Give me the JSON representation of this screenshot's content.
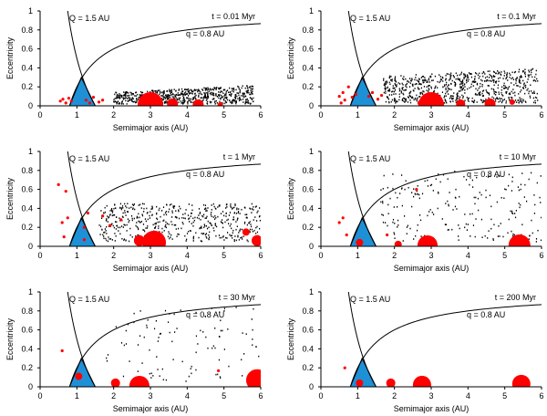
{
  "chart_data": [
    {
      "type": "scatter",
      "time_label": "t = 0.01 Myr",
      "Q_label": "Q = 1.5 AU",
      "q_label": "q = 0.8 AU",
      "xlabel": "Semimajor axis (AU)",
      "ylabel": "Eccentricity",
      "xlim": [
        0,
        6
      ],
      "ylim": [
        0,
        1
      ],
      "xticks": [
        0,
        1,
        2,
        3,
        4,
        5,
        6
      ],
      "yticks": [
        0,
        0.2,
        0.4,
        0.6,
        0.8,
        1
      ],
      "black_dots": {
        "a_min": 2.0,
        "a_max": 5.8,
        "e_base": 0.02,
        "e_spread": 0.12,
        "e_slope": 0.02,
        "count": 700,
        "seed": 11
      },
      "red_small": [
        [
          0.55,
          0.05
        ],
        [
          0.62,
          0.07
        ],
        [
          0.7,
          0.03
        ],
        [
          0.78,
          0.08
        ],
        [
          0.85,
          0.05
        ],
        [
          1.25,
          0.06
        ],
        [
          1.35,
          0.03
        ],
        [
          1.45,
          0.09
        ],
        [
          1.6,
          0.04
        ],
        [
          1.7,
          0.06
        ]
      ],
      "red_large": [
        [
          3.0,
          0.01,
          14
        ],
        [
          3.6,
          0.02,
          6
        ],
        [
          4.3,
          0.01,
          6
        ],
        [
          4.9,
          0.01,
          3
        ]
      ]
    },
    {
      "type": "scatter",
      "time_label": "t = 0.1 Myr",
      "Q_label": "Q = 1.5 AU",
      "q_label": "q = 0.8 AU",
      "xlabel": "Semimajor axis (AU)",
      "ylabel": "Eccentricity",
      "xlim": [
        0,
        6
      ],
      "ylim": [
        0,
        1
      ],
      "xticks": [
        0,
        1,
        2,
        3,
        4,
        5,
        6
      ],
      "yticks": [
        0,
        0.2,
        0.4,
        0.6,
        0.8,
        1
      ],
      "black_dots": {
        "a_min": 1.7,
        "a_max": 5.9,
        "e_base": 0.03,
        "e_spread": 0.28,
        "e_slope": 0.02,
        "count": 750,
        "seed": 23
      },
      "red_small": [
        [
          0.5,
          0.1
        ],
        [
          0.6,
          0.14
        ],
        [
          0.65,
          0.06
        ],
        [
          0.75,
          0.2
        ],
        [
          0.85,
          0.09
        ],
        [
          0.95,
          0.12
        ],
        [
          1.3,
          0.1
        ],
        [
          1.4,
          0.14
        ],
        [
          1.55,
          0.07
        ],
        [
          1.65,
          0.11
        ],
        [
          0.55,
          0.03
        ]
      ],
      "red_large": [
        [
          3.0,
          0.01,
          14
        ],
        [
          3.8,
          0.02,
          5
        ],
        [
          4.6,
          0.02,
          6
        ],
        [
          5.2,
          0.04,
          3
        ],
        [
          2.7,
          0.03,
          3
        ]
      ]
    },
    {
      "type": "scatter",
      "time_label": "t = 1 Myr",
      "Q_label": "Q = 1.5 AU",
      "q_label": "q = 0.8 AU",
      "xlabel": "Semimajor axis (AU)",
      "ylabel": "Eccentricity",
      "xlim": [
        0,
        6
      ],
      "ylim": [
        0,
        1
      ],
      "xticks": [
        0,
        1,
        2,
        3,
        4,
        5,
        6
      ],
      "yticks": [
        0,
        0.2,
        0.4,
        0.6,
        0.8,
        1
      ],
      "black_dots": {
        "a_min": 1.6,
        "a_max": 6.0,
        "e_base": 0.05,
        "e_spread": 0.4,
        "e_slope": 0.0,
        "count": 520,
        "seed": 37
      },
      "red_small": [
        [
          0.5,
          0.65
        ],
        [
          0.7,
          0.58
        ],
        [
          0.6,
          0.25
        ],
        [
          0.75,
          0.3
        ],
        [
          0.65,
          0.1
        ],
        [
          1.2,
          0.2
        ],
        [
          1.3,
          0.35
        ],
        [
          1.7,
          0.32
        ],
        [
          1.9,
          0.22
        ],
        [
          2.2,
          0.28
        ],
        [
          1.2,
          0.07
        ]
      ],
      "red_large": [
        [
          2.7,
          0.06,
          6
        ],
        [
          3.1,
          0.04,
          13
        ],
        [
          5.6,
          0.15,
          4
        ],
        [
          5.9,
          0.06,
          6
        ]
      ]
    },
    {
      "type": "scatter",
      "time_label": "t = 10 Myr",
      "Q_label": "Q = 1.5 AU",
      "q_label": "q = 0.8 AU",
      "xlabel": "Semimajor axis (AU)",
      "ylabel": "Eccentricity",
      "xlim": [
        0,
        6
      ],
      "ylim": [
        0,
        1
      ],
      "xticks": [
        0,
        1,
        2,
        3,
        4,
        5,
        6
      ],
      "yticks": [
        0,
        0.2,
        0.4,
        0.6,
        0.8,
        1
      ],
      "black_dots": {
        "a_min": 1.6,
        "a_max": 6.0,
        "e_base": 0.04,
        "e_spread": 0.75,
        "e_slope": 0.0,
        "count": 210,
        "seed": 53
      },
      "red_small": [
        [
          0.5,
          0.25
        ],
        [
          0.6,
          0.3
        ],
        [
          2.6,
          0.6
        ],
        [
          0.7,
          0.12
        ],
        [
          1.8,
          0.12
        ]
      ],
      "red_large": [
        [
          1.05,
          0.04,
          4
        ],
        [
          2.1,
          0.02,
          4
        ],
        [
          2.9,
          0.01,
          11
        ],
        [
          5.4,
          0.01,
          12
        ]
      ]
    },
    {
      "type": "scatter",
      "time_label": "t = 30 Myr",
      "Q_label": "Q = 1.5 AU",
      "q_label": "q = 0.8 AU",
      "xlabel": "Semimajor axis (AU)",
      "ylabel": "Eccentricity",
      "xlim": [
        0,
        6
      ],
      "ylim": [
        0,
        1
      ],
      "xticks": [
        0,
        1,
        2,
        3,
        4,
        5,
        6
      ],
      "yticks": [
        0,
        0.2,
        0.4,
        0.6,
        0.8,
        1
      ],
      "black_dots": {
        "a_min": 1.8,
        "a_max": 6.0,
        "e_base": 0.05,
        "e_spread": 0.8,
        "e_slope": 0.0,
        "count": 105,
        "seed": 71
      },
      "red_small": [
        [
          0.6,
          0.38
        ],
        [
          4.85,
          0.17
        ]
      ],
      "red_large": [
        [
          1.05,
          0.11,
          4
        ],
        [
          2.05,
          0.04,
          5
        ],
        [
          2.7,
          0.01,
          11
        ],
        [
          5.9,
          0.07,
          12
        ]
      ]
    },
    {
      "type": "scatter",
      "time_label": "t = 200 Myr",
      "Q_label": "Q = 1.5 AU",
      "q_label": "q = 0.8 AU",
      "xlabel": "Semimajor axis (AU)",
      "ylabel": "Eccentricity",
      "xlim": [
        0,
        6
      ],
      "ylim": [
        0,
        1
      ],
      "xticks": [
        0,
        1,
        2,
        3,
        4,
        5,
        6
      ],
      "yticks": [
        0,
        0.2,
        0.4,
        0.6,
        0.8,
        1
      ],
      "black_dots": {
        "a_min": 2.0,
        "a_max": 6.0,
        "e_base": 0.1,
        "e_spread": 0.6,
        "e_slope": 0.0,
        "count": 0,
        "seed": 89
      },
      "red_small": [
        [
          0.65,
          0.2
        ]
      ],
      "red_large": [
        [
          1.05,
          0.04,
          4
        ],
        [
          1.9,
          0.04,
          5
        ],
        [
          2.75,
          0.02,
          10
        ],
        [
          5.45,
          0.03,
          10
        ]
      ]
    }
  ]
}
